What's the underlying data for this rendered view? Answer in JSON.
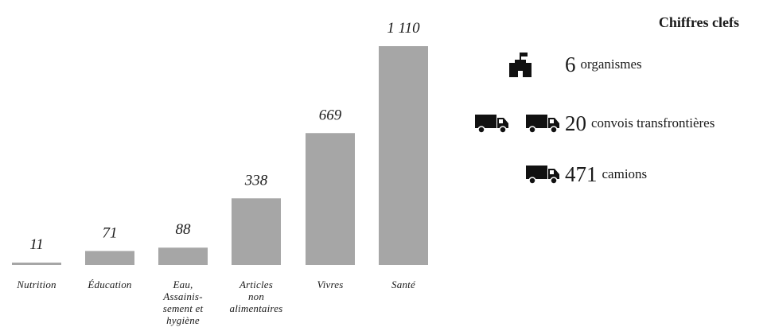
{
  "chart_data": {
    "type": "bar",
    "categories": [
      "Nutrition",
      "Éducation",
      "Eau, Assainis-sement et hygiène",
      "Articles non alimentaires",
      "Vivres",
      "Santé"
    ],
    "category_lines": [
      [
        "Nutrition"
      ],
      [
        "Éducation"
      ],
      [
        "Eau,",
        "Assainis-",
        "sement et",
        "hygiène"
      ],
      [
        "Articles",
        "non",
        "alimentaires"
      ],
      [
        "Vivres"
      ],
      [
        "Santé"
      ]
    ],
    "values": [
      11,
      71,
      88,
      338,
      669,
      1110
    ],
    "value_labels": [
      "11",
      "71",
      "88",
      "338",
      "669",
      "1 110"
    ],
    "ylim": [
      0,
      1110
    ],
    "grid": false,
    "bar_color": "#a6a6a6"
  },
  "key_figures": {
    "title": "Chiffres clefs",
    "items": [
      {
        "number": "6",
        "label": "organismes",
        "icon": "organization-building-icon"
      },
      {
        "number": "20",
        "label": "convois transfrontières",
        "icon": "truck-icon"
      },
      {
        "number": "471",
        "label": "camions",
        "icon": "truck-icon"
      }
    ]
  },
  "colors": {
    "bar": "#a6a6a6",
    "icon": "#111111",
    "text": "#1a1a1a"
  }
}
